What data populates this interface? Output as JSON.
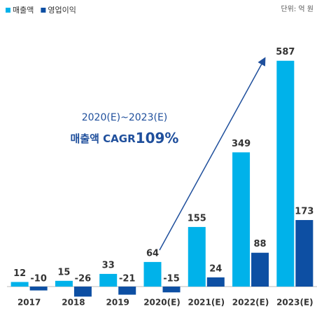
{
  "chart_data": {
    "type": "bar",
    "unit_note": "단위: 억 원",
    "annotation": {
      "period": "2020(E)~2023(E)",
      "label": "매출액 CAGR",
      "value": "109%"
    },
    "categories": [
      "2017",
      "2018",
      "2019",
      "2020(E)",
      "2021(E)",
      "2022(E)",
      "2023(E)"
    ],
    "series": [
      {
        "name": "매출액",
        "color": "#00b2ea",
        "values": [
          12,
          15,
          33,
          64,
          155,
          349,
          587
        ]
      },
      {
        "name": "영업이익",
        "color": "#0d4fa3",
        "values": [
          -10,
          -26,
          -21,
          -15,
          24,
          88,
          173
        ]
      }
    ],
    "ylim": [
      -40,
      620
    ],
    "legend": "top-left"
  }
}
